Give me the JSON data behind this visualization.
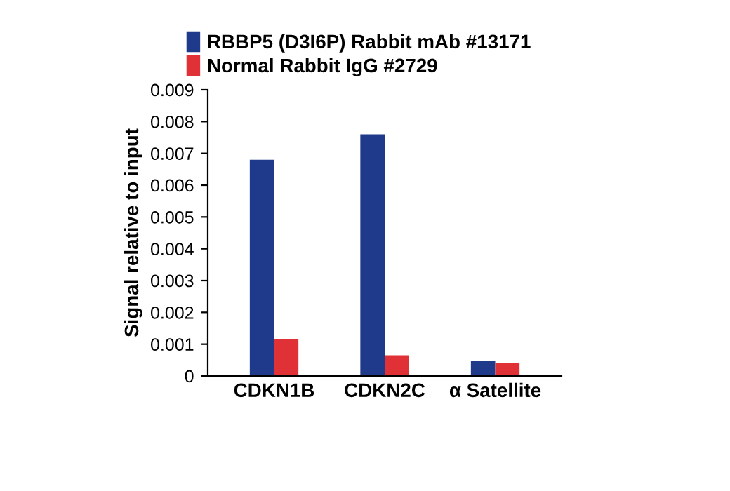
{
  "chart_data": {
    "type": "bar",
    "ylabel": "Signal relative to input",
    "categories": [
      "CDKN1B",
      "CDKN2C",
      "α Satellite"
    ],
    "series": [
      {
        "name": "RBBP5 (D3I6P) Rabbit mAb #13171",
        "color": "#1f3a8a",
        "values": [
          0.0068,
          0.0076,
          0.00048
        ]
      },
      {
        "name": "Normal Rabbit IgG #2729",
        "color": "#e03236",
        "values": [
          0.00115,
          0.00065,
          0.00042
        ]
      }
    ],
    "ylim": [
      0,
      0.009
    ],
    "yticks": [
      {
        "value": 0,
        "label": "0"
      },
      0.001,
      0.002,
      0.003,
      0.004,
      0.005,
      0.006,
      0.007,
      0.008,
      0.009
    ],
    "grid": false,
    "legend": "top left"
  }
}
